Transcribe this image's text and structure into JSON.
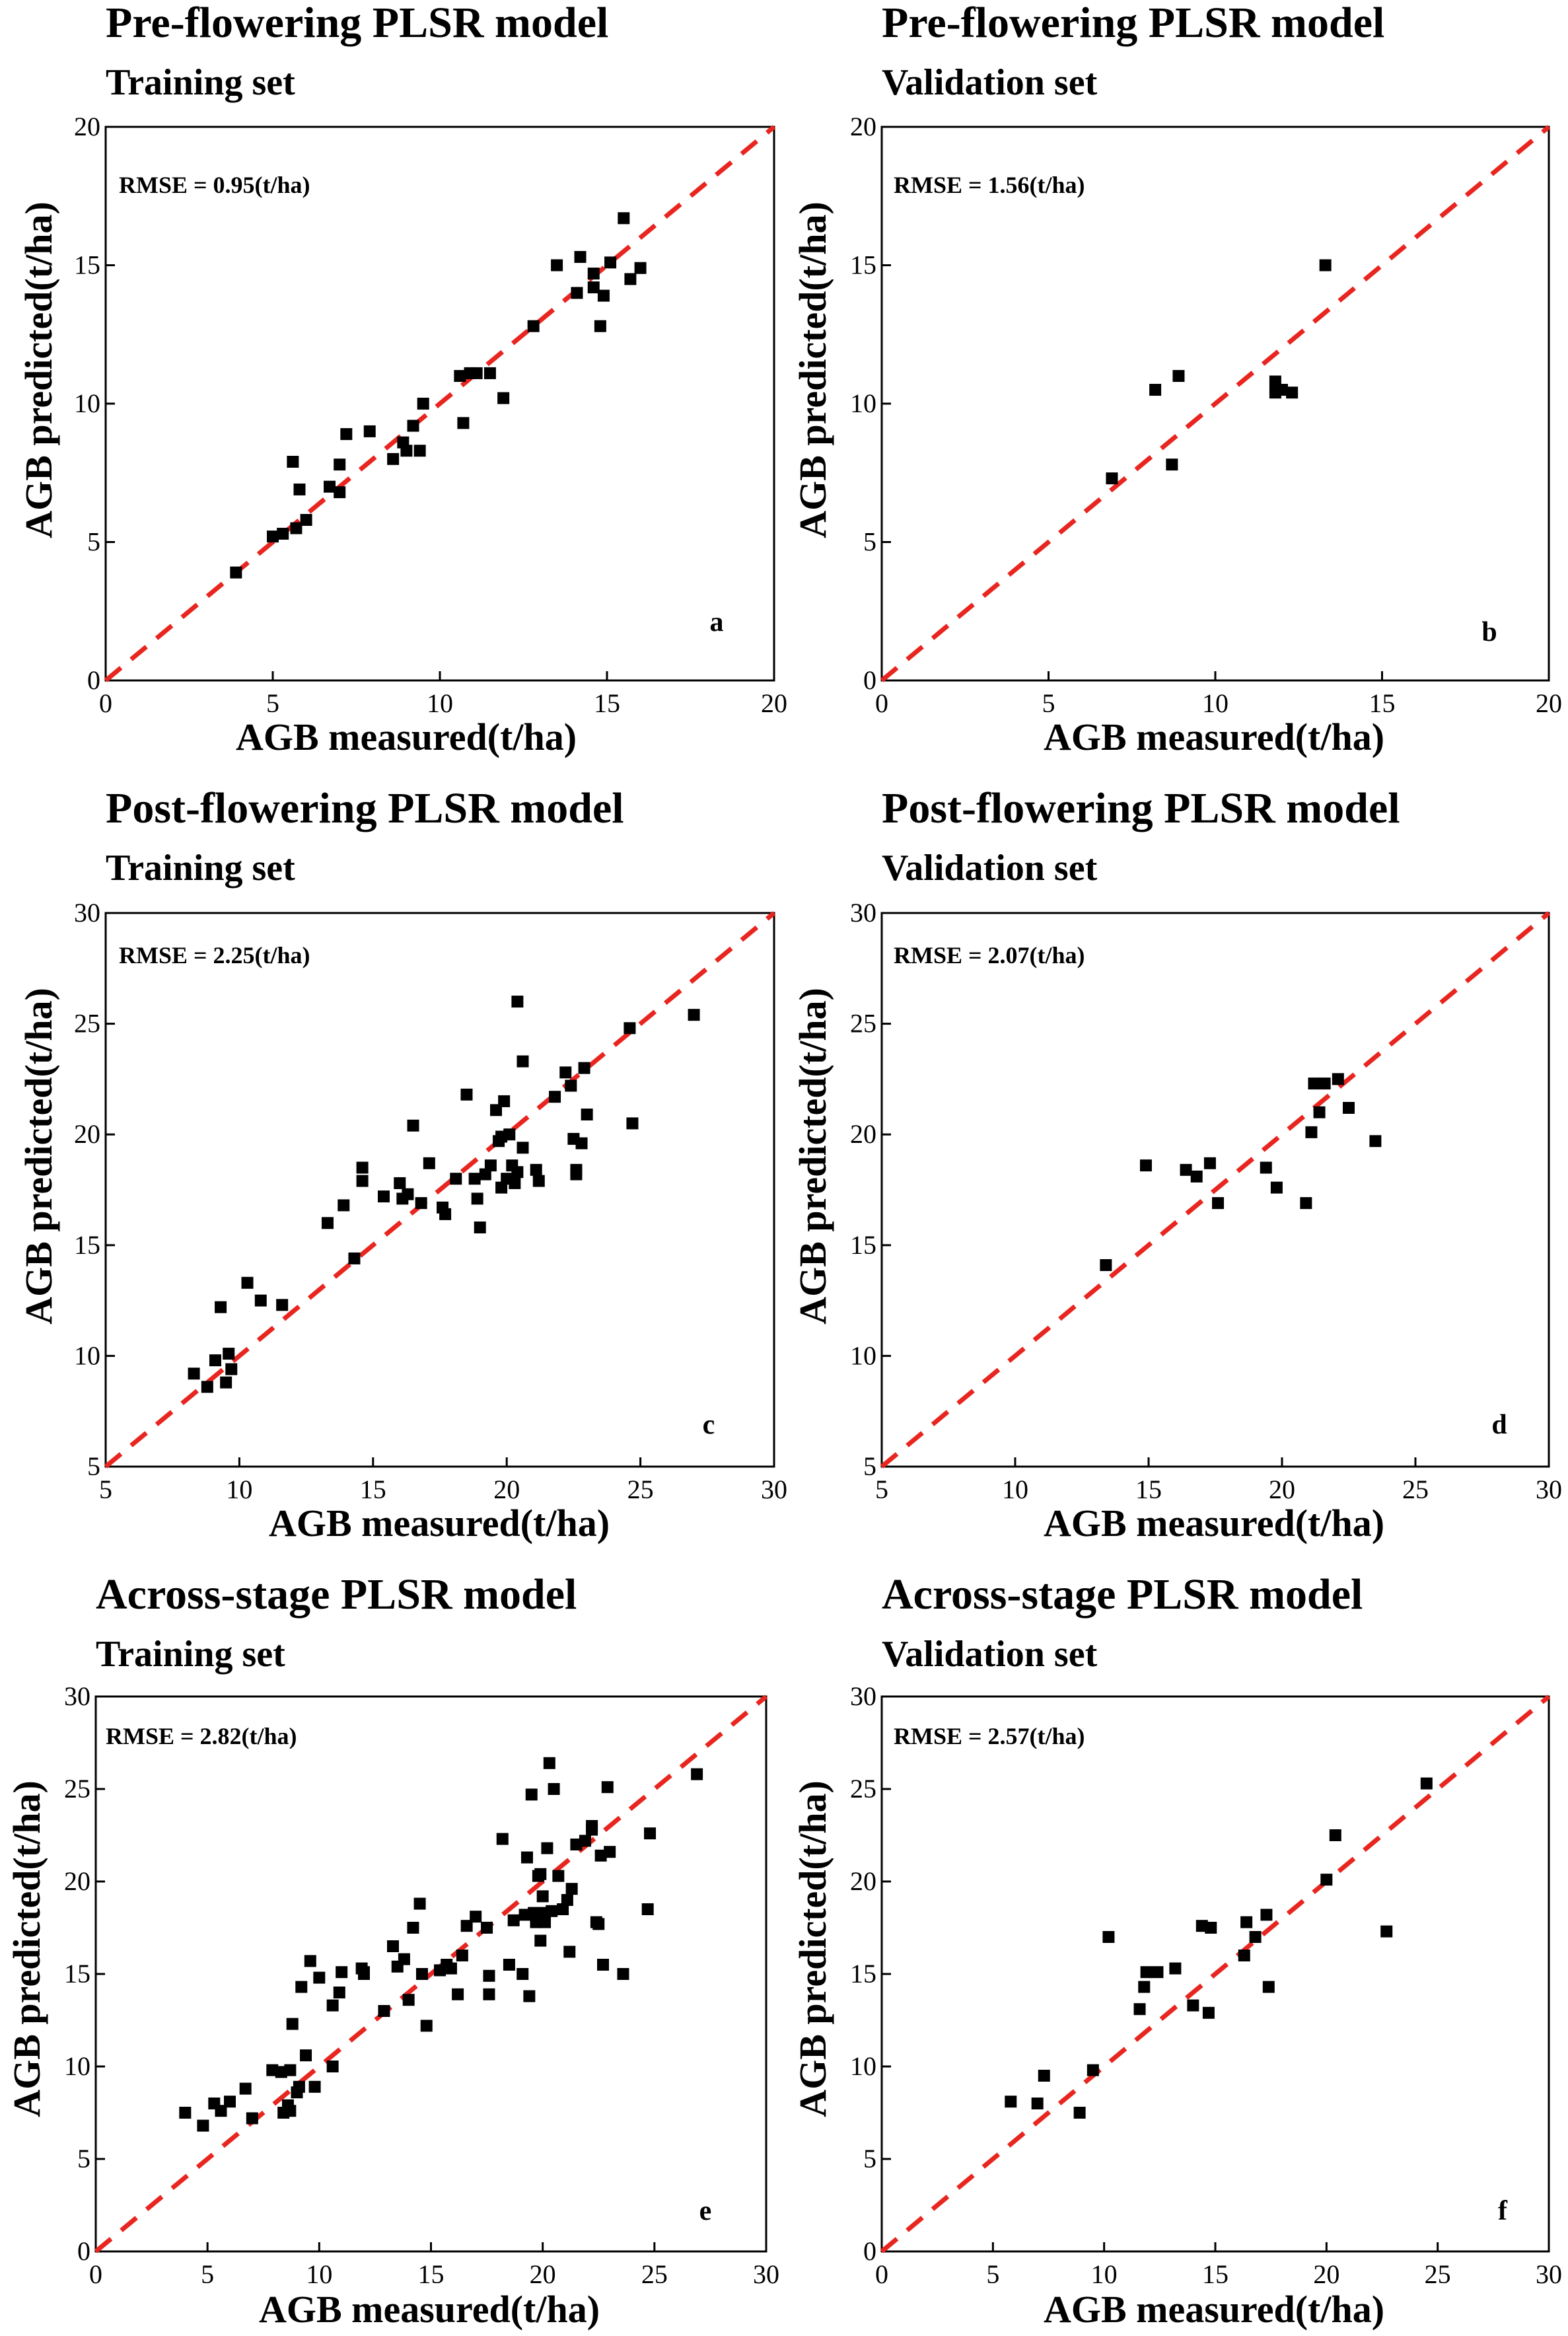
{
  "figure": {
    "panels_order": [
      "a",
      "b",
      "c",
      "d",
      "e",
      "f"
    ]
  },
  "chart_data": [
    {
      "type": "scatter",
      "panel_label": "a",
      "title": "Pre-flowering PLSR model",
      "subtitle": "Training set",
      "xlabel": "AGB measured(t/ha)",
      "ylabel": "AGB predicted(t/ha)",
      "rmse": "RMSE = 0.95(t/ha)",
      "xlim": [
        0,
        20
      ],
      "ylim": [
        0,
        20
      ],
      "xticks": [
        0,
        5,
        10,
        15,
        20
      ],
      "yticks": [
        0,
        5,
        10,
        15,
        20
      ],
      "reference_line": "1:1",
      "colors": {
        "points": "#000000",
        "line": "#e8251f"
      },
      "points": [
        [
          3.9,
          3.9
        ],
        [
          5.0,
          5.2
        ],
        [
          5.3,
          5.3
        ],
        [
          5.7,
          5.5
        ],
        [
          6.0,
          5.8
        ],
        [
          5.6,
          7.9
        ],
        [
          5.8,
          6.9
        ],
        [
          6.7,
          7.0
        ],
        [
          7.0,
          7.8
        ],
        [
          7.0,
          6.8
        ],
        [
          7.2,
          8.9
        ],
        [
          7.9,
          9.0
        ],
        [
          8.6,
          8.0
        ],
        [
          8.9,
          8.6
        ],
        [
          9.0,
          8.3
        ],
        [
          9.4,
          8.3
        ],
        [
          9.2,
          9.2
        ],
        [
          9.5,
          10.0
        ],
        [
          10.6,
          11.0
        ],
        [
          10.7,
          9.3
        ],
        [
          10.9,
          11.1
        ],
        [
          11.1,
          11.1
        ],
        [
          11.5,
          11.1
        ],
        [
          11.9,
          10.2
        ],
        [
          12.8,
          12.8
        ],
        [
          13.5,
          15.0
        ],
        [
          14.1,
          14.0
        ],
        [
          14.2,
          15.3
        ],
        [
          14.6,
          14.7
        ],
        [
          14.9,
          13.9
        ],
        [
          14.8,
          12.8
        ],
        [
          15.1,
          15.1
        ],
        [
          15.5,
          16.7
        ],
        [
          15.7,
          14.5
        ],
        [
          16.0,
          14.9
        ],
        [
          14.6,
          14.2
        ]
      ]
    },
    {
      "type": "scatter",
      "panel_label": "b",
      "title": "Pre-flowering PLSR model",
      "subtitle": "Validation set",
      "xlabel": "AGB measured(t/ha)",
      "ylabel": "AGB predicted(t/ha)",
      "rmse": "RMSE = 1.56(t/ha)",
      "xlim": [
        0,
        20
      ],
      "ylim": [
        0,
        20
      ],
      "xticks": [
        0,
        5,
        10,
        15,
        20
      ],
      "yticks": [
        0,
        5,
        10,
        15,
        20
      ],
      "reference_line": "1:1",
      "colors": {
        "points": "#000000",
        "line": "#e8251f"
      },
      "points": [
        [
          6.9,
          7.3
        ],
        [
          8.2,
          10.5
        ],
        [
          8.7,
          7.8
        ],
        [
          8.9,
          11.0
        ],
        [
          11.8,
          10.8
        ],
        [
          11.8,
          10.4
        ],
        [
          12.0,
          10.5
        ],
        [
          12.3,
          10.4
        ],
        [
          13.3,
          15.0
        ]
      ]
    },
    {
      "type": "scatter",
      "panel_label": "c",
      "title": "Post-flowering PLSR model",
      "subtitle": "Training set",
      "xlabel": "AGB measured(t/ha)",
      "ylabel": "AGB predicted(t/ha)",
      "rmse": "RMSE = 2.25(t/ha)",
      "xlim": [
        5,
        30
      ],
      "ylim": [
        5,
        30
      ],
      "xticks": [
        5,
        10,
        15,
        20,
        25,
        30
      ],
      "yticks": [
        5,
        10,
        15,
        20,
        25,
        30
      ],
      "reference_line": "1:1",
      "colors": {
        "points": "#000000",
        "line": "#e8251f"
      },
      "points": [
        [
          8.3,
          9.2
        ],
        [
          8.8,
          8.6
        ],
        [
          9.1,
          9.8
        ],
        [
          9.3,
          12.2
        ],
        [
          9.5,
          8.8
        ],
        [
          9.6,
          10.1
        ],
        [
          9.7,
          9.4
        ],
        [
          10.3,
          13.3
        ],
        [
          10.8,
          12.5
        ],
        [
          11.6,
          12.3
        ],
        [
          13.3,
          16.0
        ],
        [
          13.9,
          16.8
        ],
        [
          14.3,
          14.4
        ],
        [
          14.6,
          18.5
        ],
        [
          14.6,
          17.9
        ],
        [
          15.4,
          17.2
        ],
        [
          16.0,
          17.8
        ],
        [
          16.1,
          17.1
        ],
        [
          16.3,
          17.3
        ],
        [
          16.5,
          20.4
        ],
        [
          16.8,
          16.9
        ],
        [
          17.1,
          18.7
        ],
        [
          17.6,
          16.7
        ],
        [
          17.7,
          16.4
        ],
        [
          18.1,
          18.0
        ],
        [
          18.5,
          21.8
        ],
        [
          18.8,
          18.0
        ],
        [
          18.9,
          17.1
        ],
        [
          19.0,
          15.8
        ],
        [
          19.2,
          18.2
        ],
        [
          19.4,
          18.6
        ],
        [
          19.6,
          21.1
        ],
        [
          19.8,
          17.6
        ],
        [
          19.8,
          19.9
        ],
        [
          19.9,
          21.5
        ],
        [
          20.0,
          18.0
        ],
        [
          20.1,
          20.0
        ],
        [
          20.2,
          18.6
        ],
        [
          20.3,
          17.8
        ],
        [
          20.4,
          18.3
        ],
        [
          20.4,
          26.0
        ],
        [
          20.6,
          19.4
        ],
        [
          20.6,
          23.3
        ],
        [
          21.1,
          18.4
        ],
        [
          21.2,
          17.9
        ],
        [
          21.8,
          21.7
        ],
        [
          22.2,
          22.8
        ],
        [
          22.4,
          22.2
        ],
        [
          22.5,
          19.8
        ],
        [
          22.6,
          18.2
        ],
        [
          22.8,
          19.6
        ],
        [
          22.9,
          23.0
        ],
        [
          23.0,
          20.9
        ],
        [
          24.6,
          24.8
        ],
        [
          24.7,
          20.5
        ],
        [
          27.0,
          25.4
        ],
        [
          22.6,
          18.4
        ],
        [
          19.7,
          19.7
        ]
      ]
    },
    {
      "type": "scatter",
      "panel_label": "d",
      "title": "Post-flowering PLSR model",
      "subtitle": "Validation set",
      "xlabel": "AGB measured(t/ha)",
      "ylabel": "AGB predicted(t/ha)",
      "rmse": "RMSE = 2.07(t/ha)",
      "xlim": [
        5,
        30
      ],
      "ylim": [
        5,
        30
      ],
      "xticks": [
        5,
        10,
        15,
        20,
        25,
        30
      ],
      "yticks": [
        5,
        10,
        15,
        20,
        25,
        30
      ],
      "reference_line": "1:1",
      "colors": {
        "points": "#000000",
        "line": "#e8251f"
      },
      "points": [
        [
          13.4,
          14.1
        ],
        [
          14.9,
          18.6
        ],
        [
          16.4,
          18.4
        ],
        [
          16.8,
          18.1
        ],
        [
          17.3,
          18.7
        ],
        [
          17.6,
          16.9
        ],
        [
          19.4,
          18.5
        ],
        [
          19.8,
          17.6
        ],
        [
          20.9,
          16.9
        ],
        [
          21.1,
          20.1
        ],
        [
          21.2,
          22.3
        ],
        [
          21.4,
          21.0
        ],
        [
          21.6,
          22.3
        ],
        [
          22.1,
          22.5
        ],
        [
          22.5,
          21.2
        ],
        [
          23.5,
          19.7
        ]
      ]
    },
    {
      "type": "scatter",
      "panel_label": "e",
      "title": "Across-stage PLSR model",
      "subtitle": "Training set",
      "xlabel": "AGB measured(t/ha)",
      "ylabel": "AGB predicted(t/ha)",
      "rmse": "RMSE = 2.82(t/ha)",
      "xlim": [
        0,
        30
      ],
      "ylim": [
        0,
        30
      ],
      "xticks": [
        0,
        5,
        10,
        15,
        20,
        25,
        30
      ],
      "yticks": [
        0,
        5,
        10,
        15,
        20,
        25,
        30
      ],
      "reference_line": "1:1",
      "colors": {
        "points": "#000000",
        "line": "#e8251f"
      },
      "points": [
        [
          4.0,
          7.5
        ],
        [
          4.8,
          6.8
        ],
        [
          5.3,
          8.0
        ],
        [
          5.6,
          7.6
        ],
        [
          6.0,
          8.1
        ],
        [
          6.7,
          8.8
        ],
        [
          7.0,
          7.2
        ],
        [
          7.9,
          9.8
        ],
        [
          8.3,
          9.7
        ],
        [
          8.4,
          7.5
        ],
        [
          8.6,
          7.9
        ],
        [
          8.7,
          9.8
        ],
        [
          8.8,
          12.3
        ],
        [
          9.0,
          8.6
        ],
        [
          9.1,
          8.9
        ],
        [
          9.2,
          14.3
        ],
        [
          9.4,
          10.6
        ],
        [
          9.6,
          15.7
        ],
        [
          9.8,
          8.9
        ],
        [
          10.0,
          14.8
        ],
        [
          10.6,
          10.0
        ],
        [
          10.6,
          13.3
        ],
        [
          10.9,
          14.0
        ],
        [
          11.0,
          15.1
        ],
        [
          11.9,
          15.3
        ],
        [
          12.0,
          15.1
        ],
        [
          12.9,
          13.0
        ],
        [
          13.3,
          16.5
        ],
        [
          13.5,
          15.4
        ],
        [
          13.8,
          15.8
        ],
        [
          14.0,
          13.6
        ],
        [
          14.2,
          17.5
        ],
        [
          14.5,
          18.8
        ],
        [
          14.6,
          15.0
        ],
        [
          14.8,
          12.2
        ],
        [
          15.4,
          15.2
        ],
        [
          15.7,
          15.5
        ],
        [
          15.9,
          15.3
        ],
        [
          16.2,
          13.9
        ],
        [
          16.4,
          16.0
        ],
        [
          16.6,
          17.6
        ],
        [
          17.0,
          18.1
        ],
        [
          17.5,
          17.5
        ],
        [
          17.6,
          14.9
        ],
        [
          17.6,
          13.9
        ],
        [
          18.2,
          22.3
        ],
        [
          18.5,
          15.5
        ],
        [
          18.7,
          17.9
        ],
        [
          19.1,
          15.0
        ],
        [
          19.2,
          18.2
        ],
        [
          19.3,
          21.3
        ],
        [
          19.4,
          13.8
        ],
        [
          19.5,
          24.7
        ],
        [
          19.6,
          18.3
        ],
        [
          19.7,
          17.8
        ],
        [
          19.8,
          20.3
        ],
        [
          19.9,
          16.8
        ],
        [
          19.9,
          20.4
        ],
        [
          20.0,
          19.2
        ],
        [
          20.1,
          17.8
        ],
        [
          20.1,
          18.3
        ],
        [
          20.2,
          21.8
        ],
        [
          20.3,
          26.4
        ],
        [
          20.4,
          18.4
        ],
        [
          20.5,
          25.0
        ],
        [
          20.7,
          20.3
        ],
        [
          20.9,
          18.5
        ],
        [
          21.1,
          19.0
        ],
        [
          21.2,
          16.2
        ],
        [
          21.3,
          19.6
        ],
        [
          21.5,
          22.0
        ],
        [
          21.9,
          22.2
        ],
        [
          22.2,
          23.0
        ],
        [
          22.4,
          17.8
        ],
        [
          22.5,
          17.7
        ],
        [
          22.6,
          21.4
        ],
        [
          22.7,
          15.5
        ],
        [
          22.9,
          25.1
        ],
        [
          23.0,
          21.6
        ],
        [
          23.6,
          15.0
        ],
        [
          24.7,
          18.5
        ],
        [
          24.8,
          22.6
        ],
        [
          26.9,
          25.8
        ],
        [
          22.2,
          22.8
        ],
        [
          12.0,
          15.0
        ],
        [
          8.7,
          7.6
        ]
      ]
    },
    {
      "type": "scatter",
      "panel_label": "f",
      "title": "Across-stage PLSR model",
      "subtitle": "Validation set",
      "xlabel": "AGB measured(t/ha)",
      "ylabel": "AGB predicted(t/ha)",
      "rmse": "RMSE = 2.57(t/ha)",
      "xlim": [
        0,
        30
      ],
      "ylim": [
        0,
        30
      ],
      "xticks": [
        0,
        5,
        10,
        15,
        20,
        25,
        30
      ],
      "yticks": [
        0,
        5,
        10,
        15,
        20,
        25,
        30
      ],
      "reference_line": "1:1",
      "colors": {
        "points": "#000000",
        "line": "#e8251f"
      },
      "points": [
        [
          5.8,
          8.1
        ],
        [
          7.0,
          8.0
        ],
        [
          7.3,
          9.5
        ],
        [
          8.9,
          7.5
        ],
        [
          9.5,
          9.8
        ],
        [
          10.2,
          17.0
        ],
        [
          11.6,
          13.1
        ],
        [
          11.8,
          14.3
        ],
        [
          11.9,
          15.1
        ],
        [
          12.4,
          15.1
        ],
        [
          13.2,
          15.3
        ],
        [
          14.0,
          13.3
        ],
        [
          14.4,
          17.6
        ],
        [
          14.8,
          17.5
        ],
        [
          14.7,
          12.9
        ],
        [
          16.3,
          16.0
        ],
        [
          16.4,
          17.8
        ],
        [
          16.8,
          17.0
        ],
        [
          17.3,
          18.2
        ],
        [
          17.4,
          14.3
        ],
        [
          20.0,
          20.1
        ],
        [
          20.4,
          22.5
        ],
        [
          22.7,
          17.3
        ],
        [
          24.5,
          25.3
        ]
      ]
    }
  ]
}
